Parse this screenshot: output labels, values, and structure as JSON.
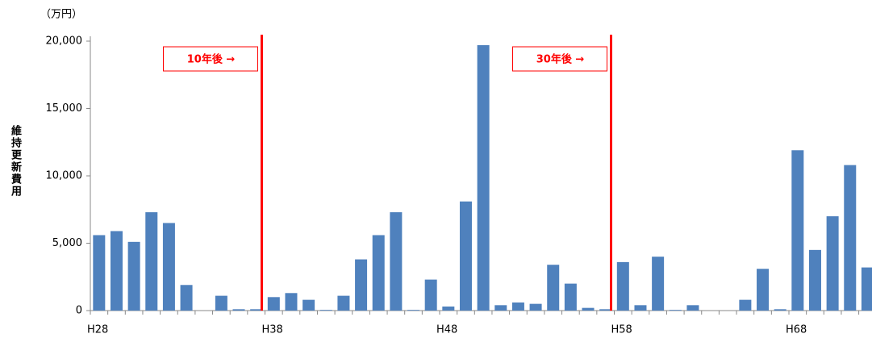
{
  "chart_data": {
    "type": "bar",
    "unit_label": "（万円）",
    "y_axis_label": "維持更新費用",
    "categories": [
      "H28",
      null,
      null,
      null,
      null,
      null,
      null,
      null,
      null,
      null,
      "H38",
      null,
      null,
      null,
      null,
      null,
      null,
      null,
      null,
      null,
      "H48",
      null,
      null,
      null,
      null,
      null,
      null,
      null,
      null,
      null,
      "H58",
      null,
      null,
      null,
      null,
      null,
      null,
      null,
      null,
      null,
      "H68",
      null,
      null,
      null,
      null
    ],
    "values": [
      5600,
      5900,
      5100,
      7300,
      6500,
      1900,
      0,
      1100,
      100,
      100,
      1000,
      1300,
      800,
      50,
      1100,
      3800,
      5600,
      7300,
      50,
      2300,
      300,
      8100,
      19700,
      400,
      600,
      500,
      3400,
      2000,
      200,
      100,
      3600,
      400,
      4000,
      50,
      400,
      0,
      0,
      800,
      3100,
      100,
      11900,
      4500,
      7000,
      10800,
      3200
    ],
    "color": "#4f81bd",
    "ylim": [
      0,
      20000
    ],
    "yticks": [
      0,
      {
        "value": 5000,
        "label": "5,000"
      },
      {
        "value": 10000,
        "label": "10,000"
      },
      {
        "value": 15000,
        "label": "15,000"
      },
      {
        "value": 20000,
        "label": "20,000"
      }
    ],
    "markers": [
      {
        "text": "10年後 →",
        "x": 10,
        "color": "#ff0000"
      },
      {
        "text": "30年後 →",
        "x": 30,
        "color": "#ff0000"
      }
    ]
  }
}
